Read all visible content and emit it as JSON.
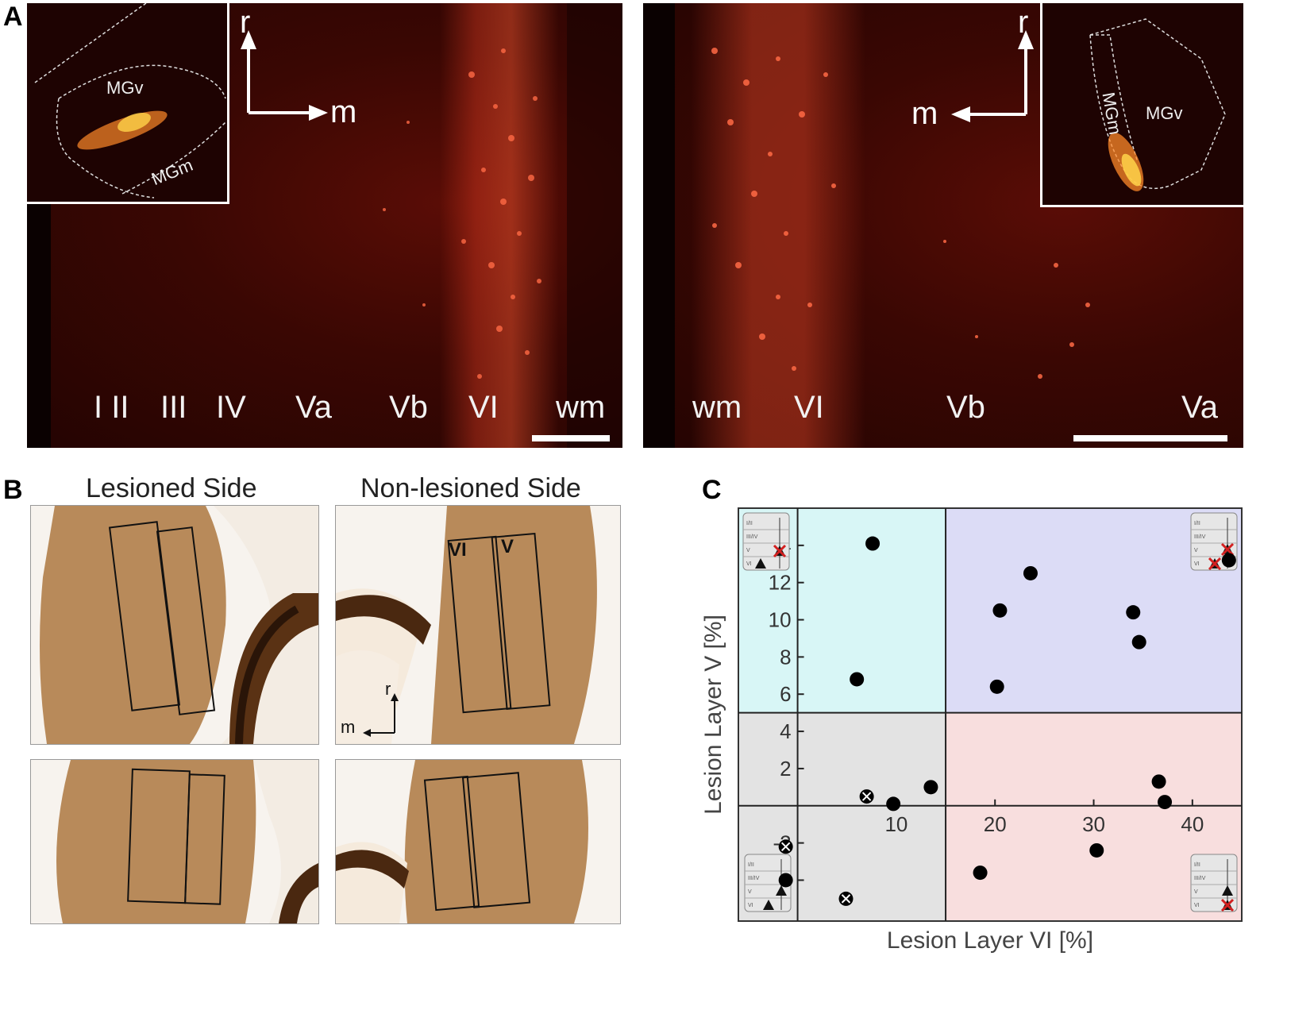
{
  "panels": {
    "A": {
      "letter": "A",
      "left_image": {
        "layers": [
          "I II",
          "III",
          "IV",
          "Va",
          "Vb",
          "VI",
          "wm"
        ],
        "inset": {
          "ventral_label": "MGv",
          "medial_label": "MGm"
        },
        "direction": {
          "rostral": "r",
          "medial": "m"
        }
      },
      "right_image": {
        "layers": [
          "wm",
          "VI",
          "Vb",
          "Va"
        ],
        "inset": {
          "ventral_label": "MGv",
          "medial_label": "MGm"
        },
        "direction": {
          "rostral": "r",
          "medial": "m"
        }
      }
    },
    "B": {
      "letter": "B",
      "titles": {
        "lesioned": "Lesioned Side",
        "non_lesioned": "Non-lesioned Side"
      },
      "roi_labels": {
        "layer_vi": "VI",
        "layer_v": "V"
      },
      "direction": {
        "rostral": "r",
        "medial": "m"
      }
    },
    "C": {
      "letter": "C",
      "quadrant_colors": {
        "top_left": "#d8f6f6",
        "top_right": "#dcdcf6",
        "bottom_left": "#e3e3e3",
        "bottom_right": "#f8dede"
      },
      "icon_layer_labels": [
        "I/II",
        "III/IV",
        "V",
        "VI"
      ]
    }
  },
  "chart_data": {
    "type": "scatter",
    "title": "",
    "xlabel": "Lesion Layer VI [%]",
    "ylabel": "Lesion Layer V [%]",
    "xlim": [
      -6,
      45
    ],
    "ylim": [
      -6.2,
      16
    ],
    "xticks": [
      10,
      20,
      30,
      40
    ],
    "yticks": [
      -4,
      -2,
      2,
      4,
      6,
      8,
      10,
      12,
      14
    ],
    "quadrant_split": {
      "x": 15,
      "y": 5
    },
    "axes_at_zero": true,
    "grid": false,
    "series": [
      {
        "marker": "filled-circle",
        "points": [
          [
            7.6,
            14.1
          ],
          [
            6.0,
            6.8
          ],
          [
            23.6,
            12.5
          ],
          [
            20.5,
            10.5
          ],
          [
            20.2,
            6.4
          ],
          [
            34.0,
            10.4
          ],
          [
            34.6,
            8.8
          ],
          [
            43.7,
            13.2
          ],
          [
            13.5,
            1.0
          ],
          [
            9.7,
            0.1
          ],
          [
            36.6,
            1.3
          ],
          [
            37.2,
            0.2
          ],
          [
            30.3,
            -2.4
          ],
          [
            18.5,
            -3.6
          ],
          [
            -1.2,
            -4.0
          ]
        ]
      },
      {
        "marker": "x-circle",
        "points": [
          [
            7.0,
            0.5
          ],
          [
            4.9,
            -5.0
          ],
          [
            -1.2,
            -2.2
          ]
        ]
      }
    ]
  }
}
